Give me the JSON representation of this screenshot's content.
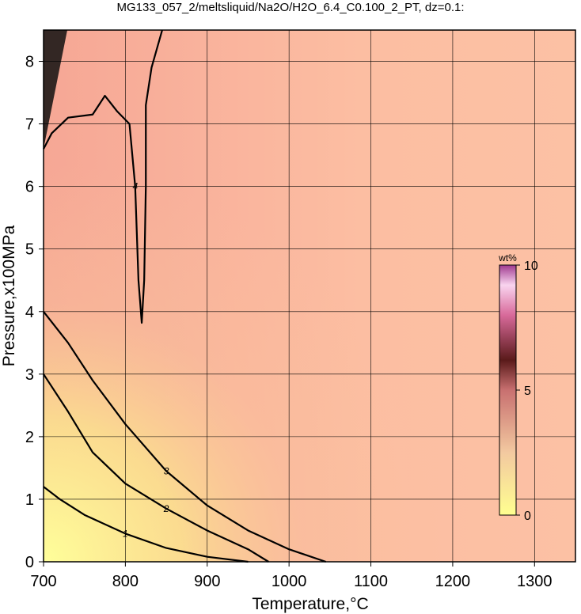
{
  "chart_data": {
    "type": "contour",
    "title": "MG133_057_2/meltsliquid/Na2O/H2O_6.4_C0.100_2_PT, dz=0.1:",
    "x_label": "Temperature,°C",
    "y_label": "Pressure,x100MPa",
    "xlim": [
      700,
      1350
    ],
    "ylim": [
      0,
      8.5
    ],
    "xticks": [
      700,
      800,
      900,
      1000,
      1100,
      1200,
      1300
    ],
    "yticks": [
      0,
      1,
      2,
      3,
      4,
      5,
      6,
      7,
      8
    ],
    "grid": true,
    "contours": [
      {
        "label": "1",
        "x": [
          700,
          720,
          750,
          800,
          850,
          900,
          950
        ],
        "y": [
          1.2,
          1.0,
          0.75,
          0.45,
          0.22,
          0.08,
          0
        ]
      },
      {
        "label": "2",
        "x": [
          700,
          730,
          760,
          800,
          850,
          900,
          950,
          975
        ],
        "y": [
          3.0,
          2.4,
          1.75,
          1.25,
          0.85,
          0.5,
          0.2,
          0
        ]
      },
      {
        "label": "3",
        "x": [
          700,
          730,
          760,
          800,
          850,
          900,
          950,
          1000,
          1045
        ],
        "y": [
          4.0,
          3.5,
          2.9,
          2.2,
          1.45,
          0.9,
          0.5,
          0.2,
          0
        ]
      },
      {
        "label": "4",
        "x": [
          700,
          710,
          730,
          760,
          775,
          790,
          805,
          812,
          816,
          820,
          823,
          825,
          825,
          832,
          845
        ],
        "y": [
          6.6,
          6.85,
          7.1,
          7.15,
          7.45,
          7.2,
          7.0,
          6.0,
          4.5,
          3.82,
          4.5,
          6.0,
          7.3,
          7.9,
          8.5
        ]
      }
    ],
    "colorbar": {
      "label": "wt%",
      "lim": [
        0,
        10
      ],
      "ticks": [
        0,
        5,
        10
      ]
    }
  }
}
